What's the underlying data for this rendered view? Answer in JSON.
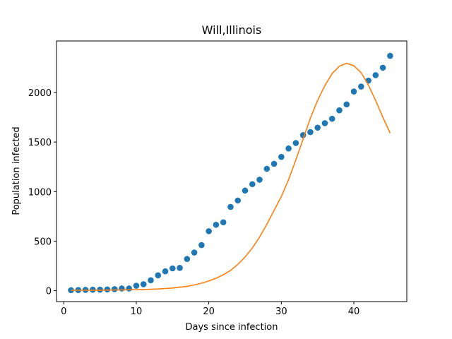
{
  "chart_data": {
    "type": "scatter",
    "title": "Will,Illinois",
    "xlabel": "Days since infection",
    "ylabel": "Population infected",
    "xlim": [
      -1,
      47.3
    ],
    "ylim": [
      -110,
      2520
    ],
    "x_ticks": [
      0,
      10,
      20,
      30,
      40
    ],
    "y_ticks": [
      0,
      500,
      1000,
      1500,
      2000
    ],
    "x_tick_labels": [
      "0",
      "10",
      "20",
      "30",
      "40"
    ],
    "y_tick_labels": [
      "0",
      "500",
      "1000",
      "1500",
      "2000"
    ],
    "grid": false,
    "legend": "none",
    "series": [
      {
        "kind": "scatter",
        "color": "#1f77b4",
        "x": [
          1,
          2,
          3,
          4,
          5,
          6,
          7,
          8,
          9,
          10,
          11,
          12,
          13,
          14,
          15,
          16,
          17,
          18,
          19,
          20,
          21,
          22,
          23,
          24,
          25,
          26,
          27,
          28,
          29,
          30,
          31,
          32,
          33,
          34,
          35,
          36,
          37,
          38,
          39,
          40,
          41,
          42,
          43,
          44,
          45
        ],
        "y": [
          5,
          6,
          8,
          10,
          10,
          12,
          15,
          22,
          22,
          50,
          65,
          105,
          155,
          195,
          225,
          230,
          320,
          385,
          460,
          600,
          665,
          690,
          845,
          910,
          1010,
          1075,
          1120,
          1230,
          1280,
          1350,
          1435,
          1490,
          1570,
          1600,
          1645,
          1690,
          1735,
          1820,
          1880,
          2010,
          2060,
          2120,
          2175,
          2250,
          2370
        ]
      },
      {
        "kind": "line",
        "color": "#ff7f0e",
        "x": [
          1,
          2,
          3,
          4,
          5,
          6,
          7,
          8,
          9,
          10,
          11,
          12,
          13,
          14,
          15,
          16,
          17,
          18,
          19,
          20,
          21,
          22,
          23,
          24,
          25,
          26,
          27,
          28,
          29,
          30,
          31,
          32,
          33,
          34,
          35,
          36,
          37,
          38,
          39,
          40,
          41,
          42,
          43,
          44,
          45
        ],
        "y": [
          3,
          4,
          4,
          5,
          5,
          6,
          7,
          8,
          9,
          10,
          12,
          14,
          17,
          22,
          27,
          35,
          44,
          58,
          75,
          98,
          125,
          160,
          205,
          265,
          340,
          430,
          540,
          670,
          810,
          950,
          1120,
          1320,
          1530,
          1740,
          1920,
          2070,
          2190,
          2265,
          2295,
          2270,
          2200,
          2075,
          1920,
          1750,
          1590
        ]
      }
    ]
  }
}
